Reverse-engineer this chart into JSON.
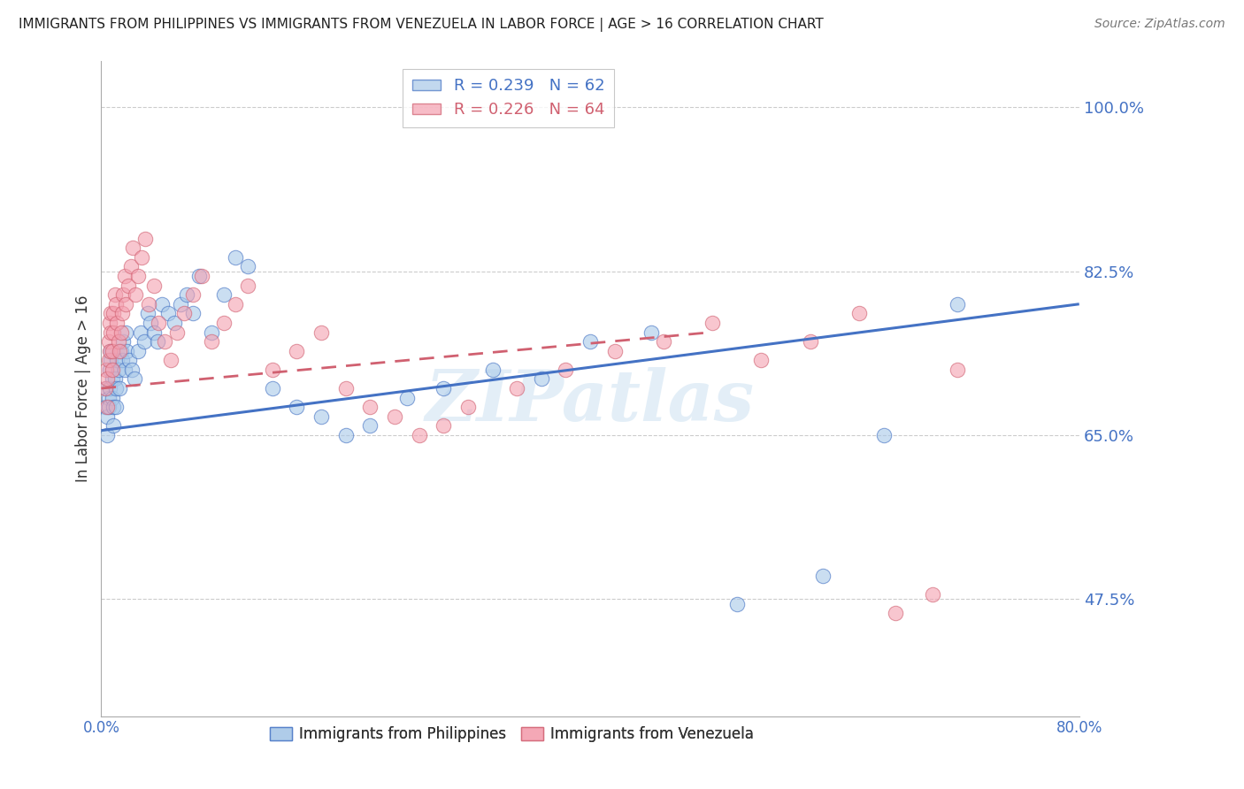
{
  "title": "IMMIGRANTS FROM PHILIPPINES VS IMMIGRANTS FROM VENEZUELA IN LABOR FORCE | AGE > 16 CORRELATION CHART",
  "source": "Source: ZipAtlas.com",
  "ylabel": "In Labor Force | Age > 16",
  "watermark": "ZIPatlas",
  "xlim": [
    0.0,
    0.8
  ],
  "ylim": [
    0.35,
    1.05
  ],
  "ytick_vals": [
    0.475,
    0.65,
    0.825,
    1.0
  ],
  "ytick_labels": [
    "47.5%",
    "65.0%",
    "82.5%",
    "100.0%"
  ],
  "xtick_vals": [
    0.0,
    0.8
  ],
  "xtick_labels": [
    "0.0%",
    "80.0%"
  ],
  "blue_face": "#a8c8e8",
  "blue_edge": "#4472c4",
  "pink_face": "#f4a0b0",
  "pink_edge": "#d06070",
  "trend_blue_color": "#4472c4",
  "trend_pink_color": "#d06070",
  "tick_color": "#4472c4",
  "legend_blue_label": "R = 0.239   N = 62",
  "legend_pink_label": "R = 0.226   N = 64",
  "legend_blue_text_color": "#4472c4",
  "legend_pink_text_color": "#d06070",
  "bottom_legend_blue": "Immigrants from Philippines",
  "bottom_legend_pink": "Immigrants from Venezuela",
  "phil_x": [
    0.003,
    0.004,
    0.005,
    0.005,
    0.006,
    0.006,
    0.007,
    0.007,
    0.008,
    0.008,
    0.009,
    0.009,
    0.01,
    0.01,
    0.011,
    0.012,
    0.012,
    0.013,
    0.014,
    0.015,
    0.016,
    0.017,
    0.018,
    0.019,
    0.02,
    0.021,
    0.023,
    0.025,
    0.027,
    0.03,
    0.032,
    0.035,
    0.038,
    0.04,
    0.043,
    0.046,
    0.05,
    0.055,
    0.06,
    0.065,
    0.07,
    0.075,
    0.08,
    0.09,
    0.1,
    0.11,
    0.12,
    0.14,
    0.16,
    0.18,
    0.2,
    0.22,
    0.25,
    0.28,
    0.32,
    0.36,
    0.4,
    0.45,
    0.52,
    0.59,
    0.64,
    0.7
  ],
  "phil_y": [
    0.68,
    0.7,
    0.67,
    0.65,
    0.69,
    0.68,
    0.72,
    0.7,
    0.74,
    0.73,
    0.71,
    0.69,
    0.68,
    0.66,
    0.71,
    0.7,
    0.68,
    0.73,
    0.72,
    0.7,
    0.74,
    0.73,
    0.75,
    0.72,
    0.76,
    0.74,
    0.73,
    0.72,
    0.71,
    0.74,
    0.76,
    0.75,
    0.78,
    0.77,
    0.76,
    0.75,
    0.79,
    0.78,
    0.77,
    0.79,
    0.8,
    0.78,
    0.82,
    0.76,
    0.8,
    0.84,
    0.83,
    0.7,
    0.68,
    0.67,
    0.65,
    0.66,
    0.69,
    0.7,
    0.72,
    0.71,
    0.75,
    0.76,
    0.47,
    0.5,
    0.65,
    0.79
  ],
  "ven_x": [
    0.003,
    0.004,
    0.005,
    0.005,
    0.006,
    0.006,
    0.007,
    0.007,
    0.008,
    0.008,
    0.009,
    0.009,
    0.01,
    0.01,
    0.011,
    0.012,
    0.013,
    0.014,
    0.015,
    0.016,
    0.017,
    0.018,
    0.019,
    0.02,
    0.022,
    0.024,
    0.026,
    0.028,
    0.03,
    0.033,
    0.036,
    0.039,
    0.043,
    0.047,
    0.052,
    0.057,
    0.062,
    0.068,
    0.075,
    0.082,
    0.09,
    0.1,
    0.11,
    0.12,
    0.14,
    0.16,
    0.18,
    0.2,
    0.22,
    0.24,
    0.26,
    0.28,
    0.3,
    0.34,
    0.38,
    0.42,
    0.46,
    0.5,
    0.54,
    0.58,
    0.62,
    0.65,
    0.68,
    0.7
  ],
  "ven_y": [
    0.7,
    0.72,
    0.68,
    0.71,
    0.73,
    0.75,
    0.77,
    0.74,
    0.76,
    0.78,
    0.72,
    0.74,
    0.76,
    0.78,
    0.8,
    0.79,
    0.77,
    0.75,
    0.74,
    0.76,
    0.78,
    0.8,
    0.82,
    0.79,
    0.81,
    0.83,
    0.85,
    0.8,
    0.82,
    0.84,
    0.86,
    0.79,
    0.81,
    0.77,
    0.75,
    0.73,
    0.76,
    0.78,
    0.8,
    0.82,
    0.75,
    0.77,
    0.79,
    0.81,
    0.72,
    0.74,
    0.76,
    0.7,
    0.68,
    0.67,
    0.65,
    0.66,
    0.68,
    0.7,
    0.72,
    0.74,
    0.75,
    0.77,
    0.73,
    0.75,
    0.78,
    0.46,
    0.48,
    0.72
  ],
  "phil_trend_x0": 0.0,
  "phil_trend_y0": 0.655,
  "phil_trend_x1": 0.8,
  "phil_trend_y1": 0.79,
  "ven_trend_x0": 0.0,
  "ven_trend_y0": 0.7,
  "ven_trend_x1": 0.5,
  "ven_trend_y1": 0.76
}
